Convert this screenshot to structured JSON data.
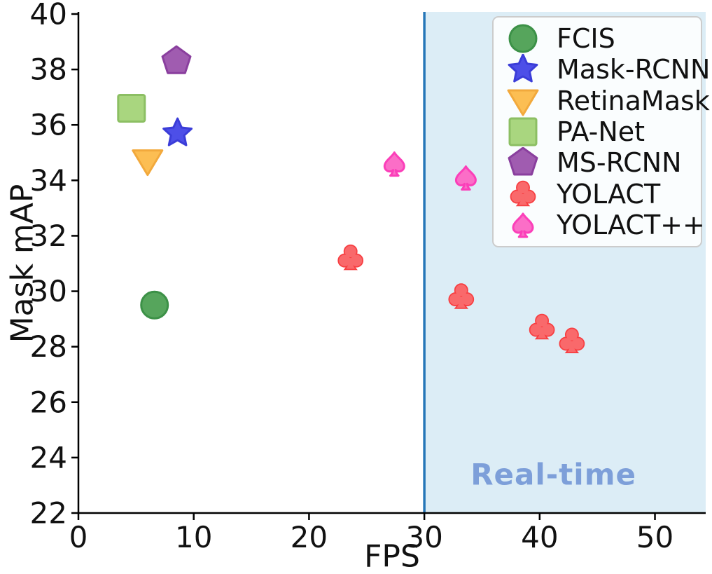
{
  "chart_data": {
    "type": "scatter",
    "title": "",
    "xlabel": "FPS",
    "ylabel": "Mask mAP",
    "xlim": [
      0,
      54.4
    ],
    "ylim": [
      22,
      40
    ],
    "xticks": [
      0,
      10,
      20,
      30,
      40,
      50
    ],
    "yticks": [
      22,
      24,
      26,
      28,
      30,
      32,
      34,
      36,
      38,
      40
    ],
    "grid": false,
    "legend_position": "upper right",
    "series": [
      {
        "name": "FCIS",
        "marker": "circle",
        "fill": "#56a55c",
        "edge": "#3c9147",
        "points": [
          [
            6.6,
            29.5
          ]
        ]
      },
      {
        "name": "Mask-RCNN",
        "marker": "star",
        "fill": "#4d4fe8",
        "edge": "#3b3dd8",
        "points": [
          [
            8.6,
            35.7
          ]
        ]
      },
      {
        "name": "RetinaMask",
        "marker": "triangle-down",
        "fill": "#fcbe53",
        "edge": "#f2a93c",
        "points": [
          [
            6.0,
            34.7
          ]
        ]
      },
      {
        "name": "PA-Net",
        "marker": "square",
        "fill": "#a9d67f",
        "edge": "#8cbf63",
        "points": [
          [
            4.6,
            36.6
          ]
        ]
      },
      {
        "name": "MS-RCNN",
        "marker": "pentagon",
        "fill": "#a05cb0",
        "edge": "#8a3f9e",
        "points": [
          [
            8.5,
            38.3
          ]
        ]
      },
      {
        "name": "YOLACT",
        "marker": "club",
        "fill": "#f9696b",
        "edge": "#f73e41",
        "points": [
          [
            23.6,
            31.2
          ],
          [
            33.2,
            29.8
          ],
          [
            40.2,
            28.7
          ],
          [
            42.8,
            28.2
          ]
        ]
      },
      {
        "name": "YOLACT++",
        "marker": "spade",
        "fill": "#fb6ec7",
        "edge": "#fb3fb9",
        "points": [
          [
            27.4,
            34.6
          ],
          [
            33.6,
            34.1
          ]
        ]
      }
    ],
    "realtime_region": {
      "threshold_fps": 30,
      "region_fill": "#dcedf6",
      "line_color": "#2677b8"
    },
    "annotations": [
      {
        "text": "Real-time",
        "x_fps": 41.2,
        "y_map": 23.4,
        "color": "#7d9fd9"
      }
    ],
    "axis_color": "#000000"
  }
}
